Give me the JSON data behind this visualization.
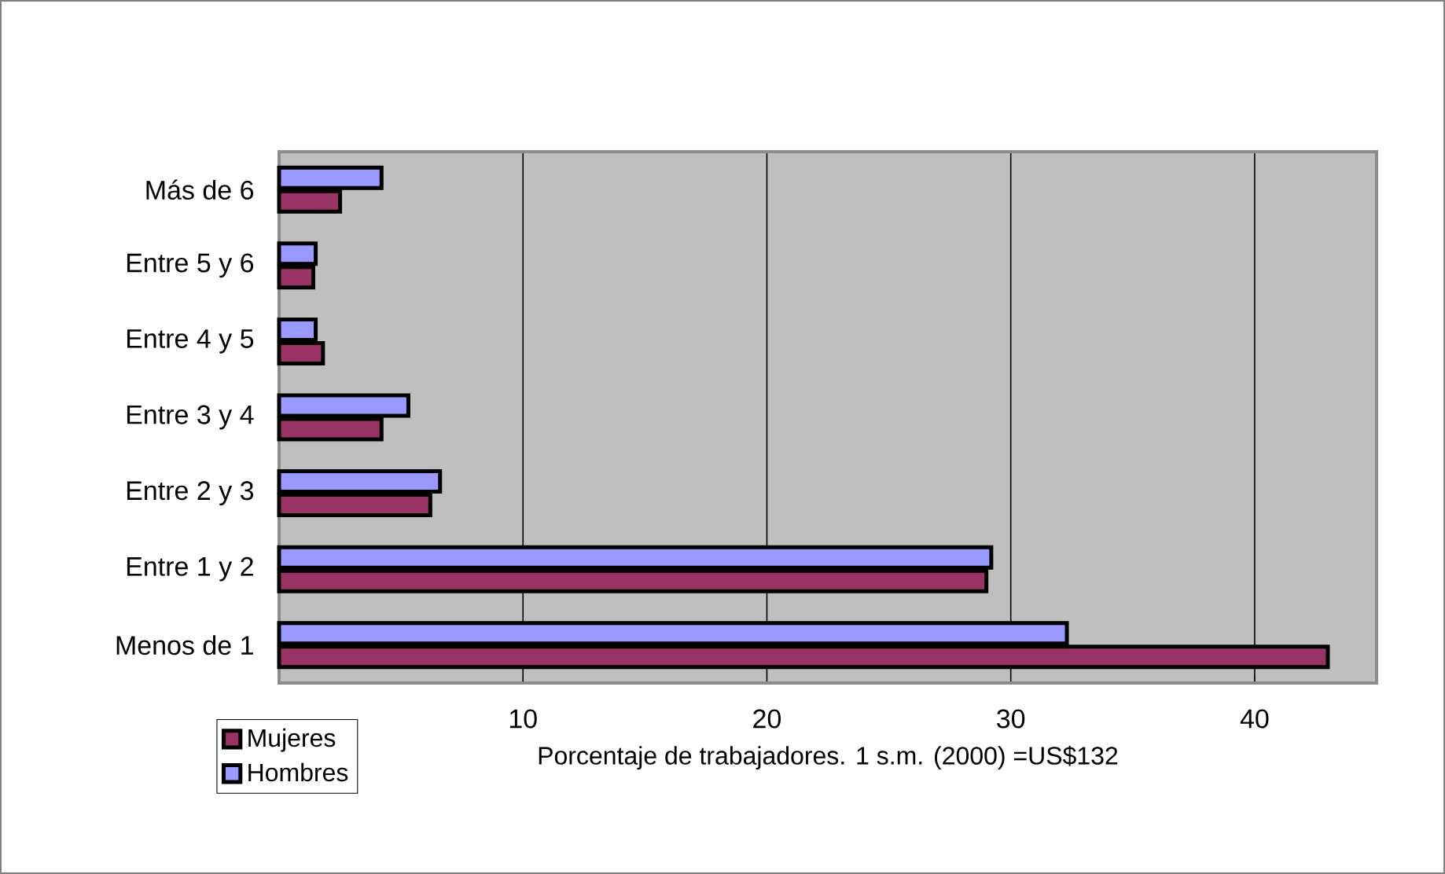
{
  "chart_data": {
    "type": "bar",
    "orientation": "horizontal",
    "xlabel": "Porcentaje de trabajadores. 1 s.m. (2000) =US$132",
    "categories": [
      "Más de 6",
      "Entre 5 y 6",
      "Entre 4 y 5",
      "Entre 3 y 4",
      "Entre 2 y 3",
      "Entre 1 y 2",
      "Menos de 1"
    ],
    "series": [
      {
        "name": "Mujeres",
        "color": "#993366",
        "values": [
          2.5,
          1.4,
          1.8,
          4.2,
          6.2,
          29.0,
          43.0
        ]
      },
      {
        "name": "Hombres",
        "color": "#9999ff",
        "values": [
          4.2,
          1.5,
          1.5,
          5.3,
          6.6,
          29.2,
          32.3
        ]
      }
    ],
    "xlim": [
      0,
      45
    ],
    "xticks": [
      {
        "value": 0,
        "label": null
      },
      10,
      20,
      30,
      40
    ],
    "grid": "x",
    "legend": "bottom left"
  }
}
